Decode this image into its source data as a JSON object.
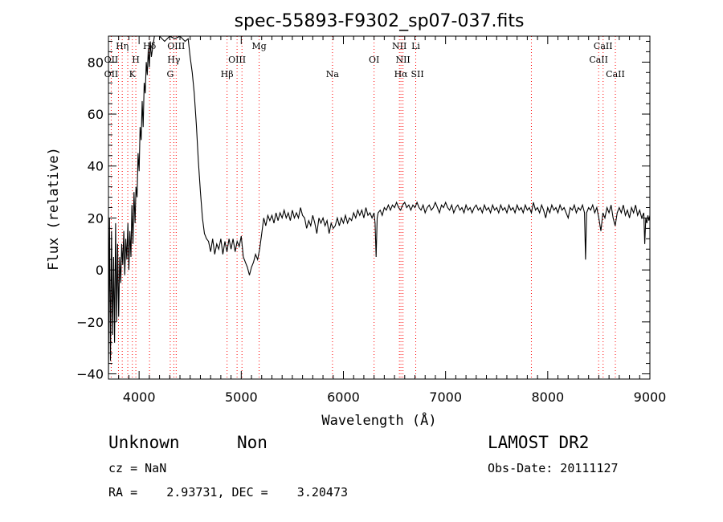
{
  "chart_data": {
    "type": "line",
    "title": "spec-55893-F9302_sp07-037.fits",
    "xlabel": "Wavelength (Å)",
    "ylabel": "Flux (relative)",
    "xlim": [
      3700,
      9000
    ],
    "ylim": [
      -42,
      90
    ],
    "x_ticks": [
      4000,
      5000,
      6000,
      7000,
      8000,
      9000
    ],
    "y_ticks": [
      -40,
      -20,
      0,
      20,
      40,
      60,
      80
    ],
    "grid": false,
    "series": [
      {
        "color": "#000000",
        "points": [
          [
            3700,
            -40
          ],
          [
            3710,
            20
          ],
          [
            3720,
            -35
          ],
          [
            3730,
            15
          ],
          [
            3740,
            -25
          ],
          [
            3750,
            5
          ],
          [
            3760,
            -28
          ],
          [
            3770,
            18
          ],
          [
            3780,
            -20
          ],
          [
            3790,
            10
          ],
          [
            3800,
            -18
          ],
          [
            3810,
            5
          ],
          [
            3820,
            -5
          ],
          [
            3830,
            10
          ],
          [
            3840,
            2
          ],
          [
            3850,
            15
          ],
          [
            3860,
            -2
          ],
          [
            3870,
            12
          ],
          [
            3880,
            4
          ],
          [
            3890,
            18
          ],
          [
            3900,
            0
          ],
          [
            3910,
            15
          ],
          [
            3920,
            5
          ],
          [
            3930,
            25
          ],
          [
            3940,
            10
          ],
          [
            3950,
            30
          ],
          [
            3960,
            18
          ],
          [
            3970,
            32
          ],
          [
            3980,
            28
          ],
          [
            3990,
            45
          ],
          [
            4000,
            38
          ],
          [
            4010,
            55
          ],
          [
            4020,
            50
          ],
          [
            4030,
            65
          ],
          [
            4040,
            55
          ],
          [
            4050,
            72
          ],
          [
            4060,
            68
          ],
          [
            4070,
            80
          ],
          [
            4080,
            75
          ],
          [
            4090,
            85
          ],
          [
            4100,
            78
          ],
          [
            4110,
            88
          ],
          [
            4120,
            82
          ],
          [
            4150,
            90
          ],
          [
            4200,
            90
          ],
          [
            4250,
            88
          ],
          [
            4300,
            90
          ],
          [
            4350,
            89
          ],
          [
            4400,
            90
          ],
          [
            4450,
            88
          ],
          [
            4480,
            89
          ],
          [
            4500,
            82
          ],
          [
            4520,
            76
          ],
          [
            4540,
            68
          ],
          [
            4560,
            56
          ],
          [
            4580,
            42
          ],
          [
            4600,
            30
          ],
          [
            4620,
            20
          ],
          [
            4640,
            14
          ],
          [
            4660,
            12
          ],
          [
            4680,
            11
          ],
          [
            4700,
            7
          ],
          [
            4720,
            12
          ],
          [
            4740,
            6
          ],
          [
            4760,
            10
          ],
          [
            4780,
            8
          ],
          [
            4800,
            12
          ],
          [
            4820,
            6
          ],
          [
            4840,
            11
          ],
          [
            4860,
            7
          ],
          [
            4880,
            12
          ],
          [
            4900,
            8
          ],
          [
            4920,
            12
          ],
          [
            4940,
            7
          ],
          [
            4960,
            11
          ],
          [
            4980,
            9
          ],
          [
            5000,
            13
          ],
          [
            5020,
            5
          ],
          [
            5040,
            3
          ],
          [
            5060,
            1
          ],
          [
            5080,
            -2
          ],
          [
            5100,
            1
          ],
          [
            5120,
            3
          ],
          [
            5140,
            6
          ],
          [
            5160,
            4
          ],
          [
            5180,
            8
          ],
          [
            5200,
            14
          ],
          [
            5220,
            20
          ],
          [
            5240,
            17
          ],
          [
            5260,
            21
          ],
          [
            5280,
            19
          ],
          [
            5300,
            21
          ],
          [
            5320,
            18
          ],
          [
            5340,
            22
          ],
          [
            5360,
            19
          ],
          [
            5380,
            22
          ],
          [
            5400,
            20
          ],
          [
            5420,
            23
          ],
          [
            5440,
            20
          ],
          [
            5460,
            22
          ],
          [
            5480,
            19
          ],
          [
            5500,
            23
          ],
          [
            5520,
            20
          ],
          [
            5540,
            22
          ],
          [
            5560,
            20
          ],
          [
            5580,
            24
          ],
          [
            5600,
            21
          ],
          [
            5620,
            20
          ],
          [
            5640,
            16
          ],
          [
            5660,
            19
          ],
          [
            5680,
            17
          ],
          [
            5700,
            21
          ],
          [
            5720,
            18
          ],
          [
            5740,
            14
          ],
          [
            5760,
            20
          ],
          [
            5780,
            18
          ],
          [
            5800,
            20
          ],
          [
            5820,
            17
          ],
          [
            5840,
            19
          ],
          [
            5860,
            14
          ],
          [
            5880,
            18
          ],
          [
            5900,
            16
          ],
          [
            5920,
            17
          ],
          [
            5940,
            20
          ],
          [
            5960,
            17
          ],
          [
            5980,
            20
          ],
          [
            6000,
            18
          ],
          [
            6020,
            21
          ],
          [
            6040,
            18
          ],
          [
            6060,
            20
          ],
          [
            6080,
            19
          ],
          [
            6100,
            22
          ],
          [
            6120,
            20
          ],
          [
            6140,
            23
          ],
          [
            6160,
            21
          ],
          [
            6180,
            23
          ],
          [
            6200,
            20
          ],
          [
            6220,
            24
          ],
          [
            6240,
            21
          ],
          [
            6260,
            22
          ],
          [
            6280,
            20
          ],
          [
            6300,
            22
          ],
          [
            6310,
            18
          ],
          [
            6320,
            5
          ],
          [
            6330,
            20
          ],
          [
            6340,
            22
          ],
          [
            6360,
            23
          ],
          [
            6380,
            21
          ],
          [
            6400,
            24
          ],
          [
            6420,
            23
          ],
          [
            6440,
            25
          ],
          [
            6460,
            23
          ],
          [
            6480,
            25
          ],
          [
            6500,
            24
          ],
          [
            6520,
            26
          ],
          [
            6540,
            24
          ],
          [
            6560,
            23
          ],
          [
            6580,
            25
          ],
          [
            6600,
            26
          ],
          [
            6620,
            24
          ],
          [
            6640,
            25
          ],
          [
            6660,
            23
          ],
          [
            6680,
            25
          ],
          [
            6700,
            24
          ],
          [
            6720,
            26
          ],
          [
            6740,
            24
          ],
          [
            6760,
            23
          ],
          [
            6780,
            25
          ],
          [
            6800,
            22
          ],
          [
            6820,
            24
          ],
          [
            6840,
            25
          ],
          [
            6860,
            23
          ],
          [
            6880,
            24
          ],
          [
            6900,
            26
          ],
          [
            6920,
            24
          ],
          [
            6940,
            22
          ],
          [
            6960,
            25
          ],
          [
            6980,
            24
          ],
          [
            7000,
            26
          ],
          [
            7020,
            24
          ],
          [
            7040,
            23
          ],
          [
            7060,
            25
          ],
          [
            7080,
            22
          ],
          [
            7100,
            24
          ],
          [
            7120,
            25
          ],
          [
            7140,
            23
          ],
          [
            7160,
            24
          ],
          [
            7180,
            22
          ],
          [
            7200,
            25
          ],
          [
            7220,
            23
          ],
          [
            7240,
            24
          ],
          [
            7260,
            22
          ],
          [
            7280,
            24
          ],
          [
            7300,
            25
          ],
          [
            7320,
            23
          ],
          [
            7340,
            24
          ],
          [
            7360,
            22
          ],
          [
            7380,
            25
          ],
          [
            7400,
            23
          ],
          [
            7420,
            24
          ],
          [
            7440,
            22
          ],
          [
            7460,
            25
          ],
          [
            7480,
            23
          ],
          [
            7500,
            24
          ],
          [
            7520,
            22
          ],
          [
            7540,
            25
          ],
          [
            7560,
            23
          ],
          [
            7580,
            24
          ],
          [
            7600,
            22
          ],
          [
            7620,
            25
          ],
          [
            7640,
            23
          ],
          [
            7660,
            24
          ],
          [
            7680,
            22
          ],
          [
            7700,
            25
          ],
          [
            7720,
            23
          ],
          [
            7740,
            24
          ],
          [
            7760,
            22
          ],
          [
            7780,
            25
          ],
          [
            7800,
            23
          ],
          [
            7820,
            24
          ],
          [
            7840,
            22
          ],
          [
            7860,
            26
          ],
          [
            7880,
            23
          ],
          [
            7900,
            24
          ],
          [
            7920,
            22
          ],
          [
            7940,
            25
          ],
          [
            7960,
            23
          ],
          [
            7980,
            20
          ],
          [
            8000,
            24
          ],
          [
            8020,
            22
          ],
          [
            8040,
            25
          ],
          [
            8060,
            23
          ],
          [
            8080,
            24
          ],
          [
            8100,
            22
          ],
          [
            8120,
            25
          ],
          [
            8140,
            23
          ],
          [
            8160,
            24
          ],
          [
            8180,
            22
          ],
          [
            8200,
            20
          ],
          [
            8220,
            24
          ],
          [
            8240,
            23
          ],
          [
            8260,
            25
          ],
          [
            8280,
            22
          ],
          [
            8300,
            24
          ],
          [
            8320,
            23
          ],
          [
            8340,
            25
          ],
          [
            8360,
            22
          ],
          [
            8370,
            4
          ],
          [
            8380,
            22
          ],
          [
            8400,
            24
          ],
          [
            8420,
            23
          ],
          [
            8440,
            25
          ],
          [
            8460,
            22
          ],
          [
            8480,
            24
          ],
          [
            8500,
            20
          ],
          [
            8520,
            15
          ],
          [
            8540,
            22
          ],
          [
            8560,
            20
          ],
          [
            8580,
            24
          ],
          [
            8600,
            22
          ],
          [
            8620,
            25
          ],
          [
            8640,
            20
          ],
          [
            8660,
            17
          ],
          [
            8680,
            22
          ],
          [
            8700,
            24
          ],
          [
            8720,
            22
          ],
          [
            8740,
            25
          ],
          [
            8760,
            21
          ],
          [
            8780,
            23
          ],
          [
            8800,
            20
          ],
          [
            8820,
            24
          ],
          [
            8840,
            22
          ],
          [
            8860,
            25
          ],
          [
            8880,
            21
          ],
          [
            8900,
            23
          ],
          [
            8920,
            20
          ],
          [
            8940,
            22
          ],
          [
            8950,
            10
          ],
          [
            8960,
            20
          ],
          [
            8970,
            18
          ],
          [
            8980,
            21
          ],
          [
            8990,
            19
          ],
          [
            9000,
            21
          ]
        ]
      }
    ],
    "line_markers": [
      {
        "label": "OII",
        "x": 3727,
        "row": 1
      },
      {
        "label": "OII",
        "x": 3727,
        "row": 3
      },
      {
        "label": "Hη",
        "x": 3835,
        "row": 0
      },
      {
        "label": "H",
        "x": 3968,
        "row": 1
      },
      {
        "label": "K",
        "x": 3934,
        "row": 2
      },
      {
        "label": "Hδ",
        "x": 4102,
        "row": 0
      },
      {
        "label": "OIII",
        "x": 4363,
        "row": 0
      },
      {
        "label": "Hγ",
        "x": 4340,
        "row": 1
      },
      {
        "label": "G",
        "x": 4305,
        "row": 2
      },
      {
        "label": "Hβ",
        "x": 4861,
        "row": 2
      },
      {
        "label": "OIII",
        "x": 4959,
        "row": 1
      },
      {
        "label": "Mg",
        "x": 5175,
        "row": 0
      },
      {
        "label": "Na",
        "x": 5893,
        "row": 2
      },
      {
        "label": "OI",
        "x": 6300,
        "row": 1
      },
      {
        "label": "NII",
        "x": 6548,
        "row": 0
      },
      {
        "label": "NII",
        "x": 6583,
        "row": 1
      },
      {
        "label": "Hα",
        "x": 6563,
        "row": 2
      },
      {
        "label": "Li",
        "x": 6708,
        "row": 0
      },
      {
        "label": "SII",
        "x": 6724,
        "row": 2
      },
      {
        "label": "CaII",
        "x": 8542,
        "row": 0
      },
      {
        "label": "CaII",
        "x": 8498,
        "row": 1
      },
      {
        "label": "CaII",
        "x": 8662,
        "row": 2
      }
    ],
    "marker_lines_x": [
      3727,
      3798,
      3835,
      3889,
      3934,
      3968,
      4102,
      4305,
      4340,
      4363,
      4861,
      4959,
      5007,
      5175,
      5893,
      6300,
      6548,
      6563,
      6583,
      6708,
      7840,
      8498,
      8542,
      8662
    ],
    "marker_color": "#ff0000"
  },
  "info": {
    "classification": "Unknown",
    "subclass": "Non",
    "survey": "LAMOST DR2",
    "cz_line": "cz = NaN",
    "obs_date_line": "Obs-Date: 20111127",
    "coords_line": "RA =    2.93731, DEC =    3.20473"
  }
}
